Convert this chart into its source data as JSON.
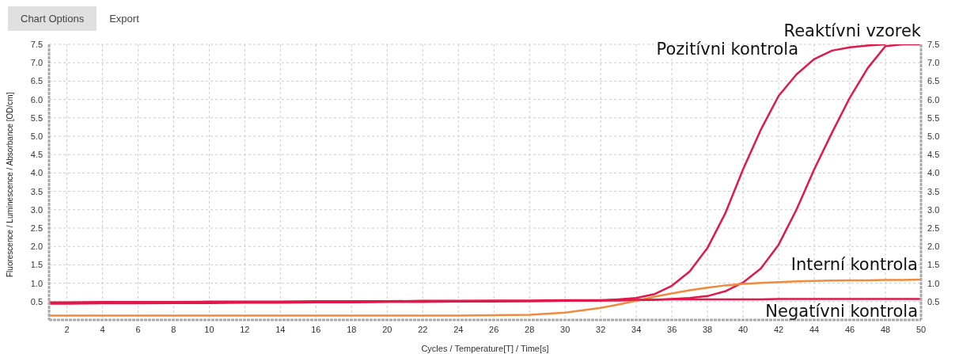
{
  "chart_data": {
    "type": "line",
    "xlabel": "Cycles / Temperature[T] / Time[s]",
    "ylabel": "Fluorescence / Luminescence / Absorbance [OD/cm]",
    "annotations": [
      "Chart Options",
      "Export"
    ],
    "x": [
      1,
      2,
      4,
      6,
      8,
      10,
      12,
      14,
      16,
      18,
      20,
      22,
      24,
      26,
      28,
      30,
      32,
      33,
      34,
      35,
      36,
      37,
      38,
      39,
      40,
      41,
      42,
      43,
      44,
      45,
      46,
      47,
      48,
      49,
      50
    ],
    "series": [
      {
        "name": "Reaktívni vzorek",
        "color": "#e0194a",
        "values": [
          0.46,
          0.46,
          0.47,
          0.47,
          0.47,
          0.48,
          0.48,
          0.48,
          0.49,
          0.49,
          0.5,
          0.5,
          0.5,
          0.51,
          0.51,
          0.52,
          0.53,
          0.53,
          0.54,
          0.55,
          0.57,
          0.6,
          0.65,
          0.78,
          1.02,
          1.4,
          2.05,
          3.0,
          4.1,
          5.1,
          6.05,
          6.85,
          7.45,
          7.5,
          7.5
        ]
      },
      {
        "name": "Pozitívni kontrola",
        "color": "#e0194a",
        "values": [
          0.44,
          0.44,
          0.45,
          0.45,
          0.46,
          0.46,
          0.47,
          0.47,
          0.48,
          0.48,
          0.49,
          0.49,
          0.5,
          0.5,
          0.51,
          0.52,
          0.53,
          0.56,
          0.6,
          0.7,
          0.93,
          1.32,
          1.96,
          2.9,
          4.1,
          5.18,
          6.1,
          6.68,
          7.1,
          7.33,
          7.42,
          7.47,
          7.5,
          null,
          null
        ]
      },
      {
        "name": "Interní kontrola",
        "color": "#f08a3c",
        "values": [
          0.12,
          0.12,
          0.12,
          0.12,
          0.12,
          0.12,
          0.12,
          0.12,
          0.12,
          0.12,
          0.12,
          0.12,
          0.12,
          0.13,
          0.14,
          0.2,
          0.33,
          0.42,
          0.52,
          0.63,
          0.72,
          0.81,
          0.88,
          0.94,
          0.98,
          1.01,
          1.03,
          1.05,
          1.06,
          1.07,
          1.08,
          1.08,
          1.09,
          1.09,
          1.1
        ]
      },
      {
        "name": "Negatívni kontrola",
        "color": "#e0194a",
        "values": [
          0.48,
          0.48,
          0.49,
          0.49,
          0.49,
          0.5,
          0.5,
          0.5,
          0.51,
          0.51,
          0.51,
          0.52,
          0.52,
          0.53,
          0.53,
          0.54,
          0.54,
          0.55,
          0.55,
          0.55,
          0.56,
          0.56,
          0.56,
          0.56,
          0.56,
          0.56,
          0.57,
          0.57,
          0.57,
          0.57,
          0.57,
          0.57,
          0.57,
          0.57,
          0.57
        ]
      }
    ],
    "xlim": [
      1,
      50
    ],
    "xticks": [
      2,
      4,
      6,
      8,
      10,
      12,
      14,
      16,
      18,
      20,
      22,
      24,
      26,
      28,
      30,
      32,
      34,
      36,
      38,
      40,
      42,
      44,
      46,
      48,
      50
    ],
    "ylim": [
      0,
      7.5
    ],
    "yticks": [
      0.5,
      {
        "value": 1,
        "label": "1.0"
      },
      1.5,
      {
        "value": 2,
        "label": "2.0"
      },
      2.5,
      {
        "value": 3,
        "label": "3.0"
      },
      3.5,
      {
        "value": 4,
        "label": "4.0"
      },
      4.5,
      {
        "value": 5,
        "label": "5.0"
      },
      5.5,
      {
        "value": 6,
        "label": "6.0"
      },
      6.5,
      {
        "value": 7,
        "label": "7.0"
      },
      7.5
    ],
    "y2lim": [
      0,
      7.5
    ],
    "y2ticks": [
      0.5,
      {
        "value": 1,
        "label": "1.0"
      },
      1.5,
      {
        "value": 2,
        "label": "2.0"
      },
      2.5,
      {
        "value": 3,
        "label": "3.0"
      },
      3.5,
      {
        "value": 4,
        "label": "4.0"
      },
      4.5,
      {
        "value": 5,
        "label": "5.0"
      },
      5.5,
      {
        "value": 6,
        "label": "6.0"
      },
      6.5,
      {
        "value": 7,
        "label": "7.0"
      },
      7.5
    ],
    "grid": true,
    "legend": false,
    "marker": "none",
    "line_style": "solid"
  }
}
